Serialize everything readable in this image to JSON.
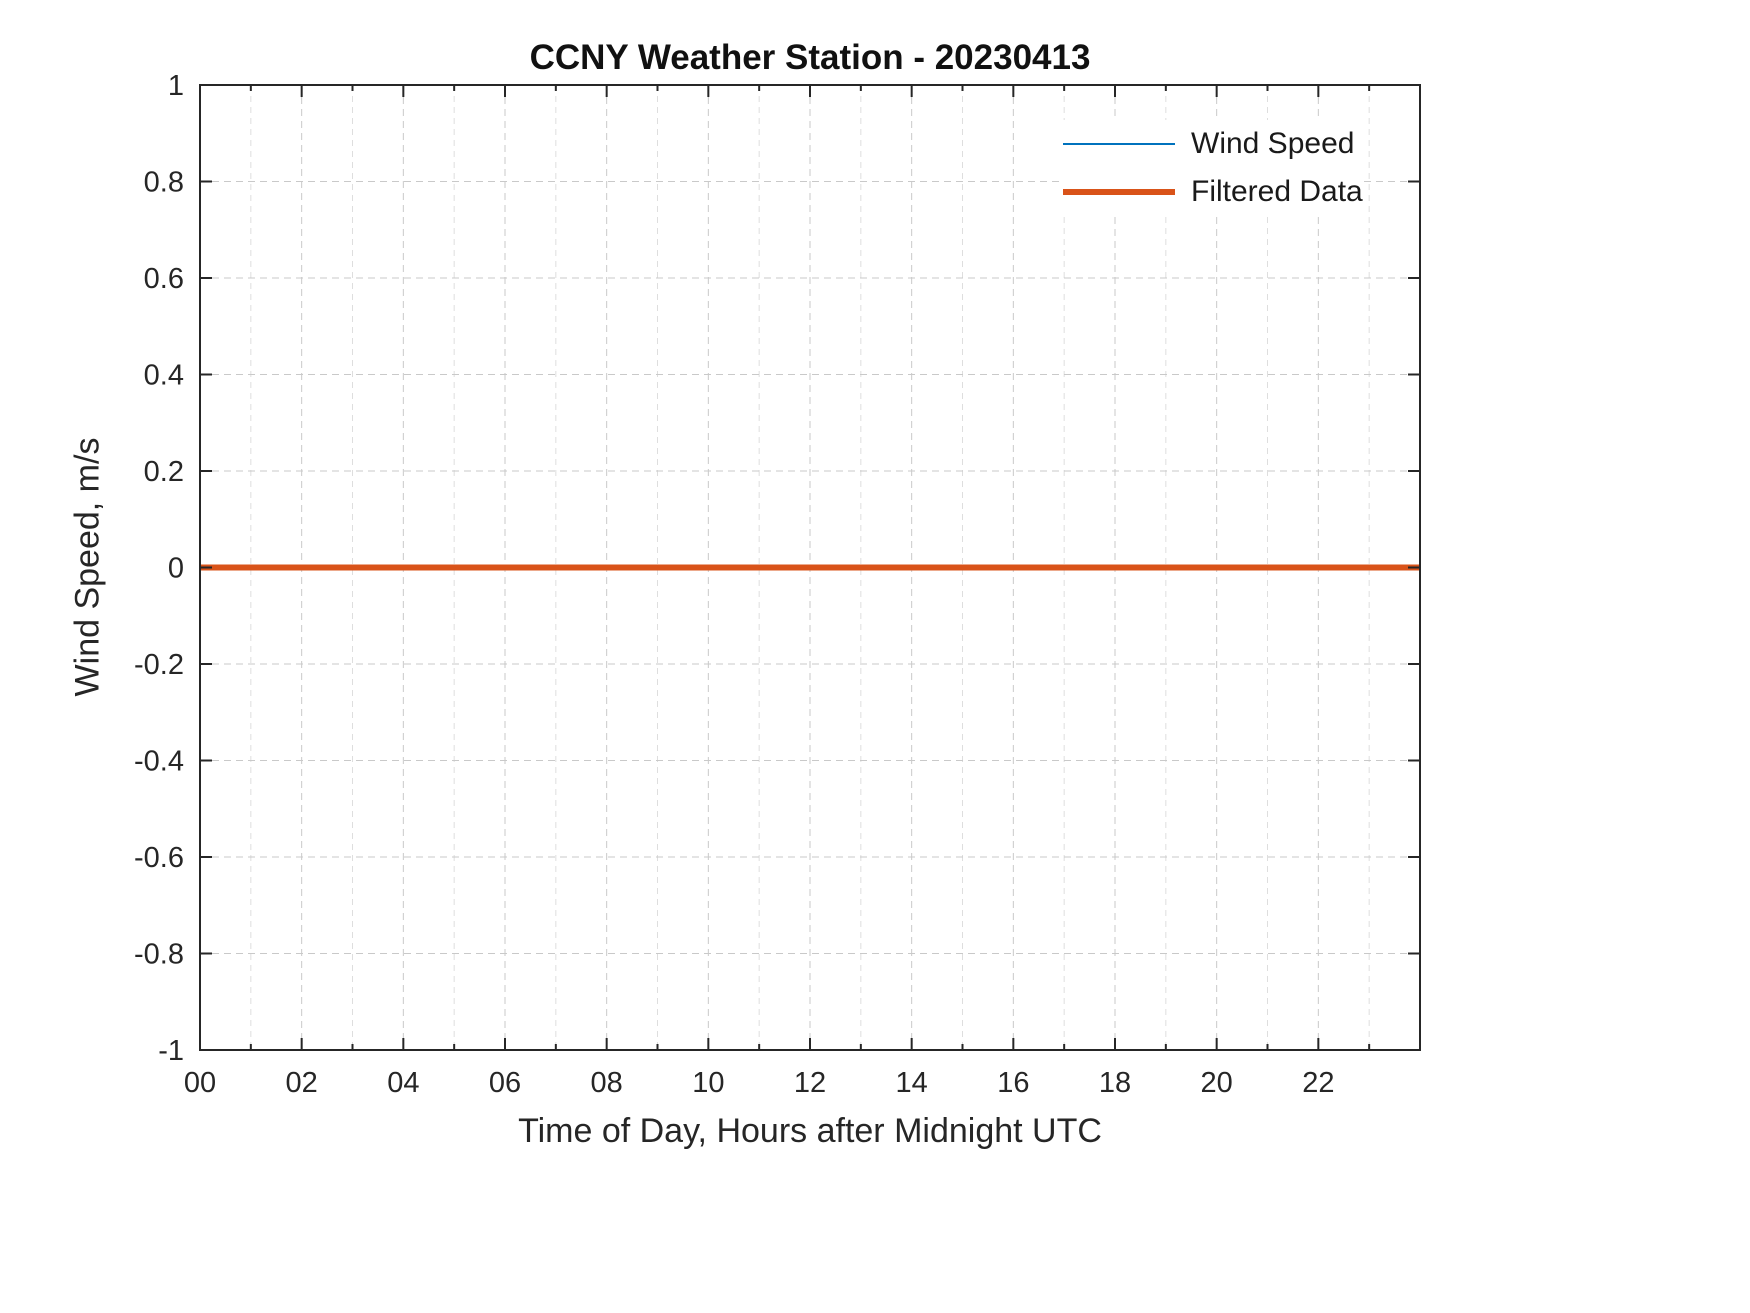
{
  "figure": {
    "background": "#ffffff"
  },
  "chart_data": {
    "type": "line",
    "title": "CCNY Weather Station - 20230413",
    "xlabel": "Time of Day, Hours after Midnight UTC",
    "ylabel": "Wind Speed, m/s",
    "xlim": [
      0,
      24
    ],
    "ylim": [
      -1,
      1
    ],
    "x_ticks": [
      0,
      2,
      4,
      6,
      8,
      10,
      12,
      14,
      16,
      18,
      20,
      22
    ],
    "x_tick_labels": [
      "00",
      "02",
      "04",
      "06",
      "08",
      "10",
      "12",
      "14",
      "16",
      "18",
      "20",
      "22"
    ],
    "x_minor_step": 1,
    "y_ticks": [
      -1,
      -0.8,
      -0.6,
      -0.4,
      -0.2,
      0,
      0.2,
      0.4,
      0.6,
      0.8,
      1
    ],
    "y_tick_labels": [
      "-1",
      "-0.8",
      "-0.6",
      "-0.4",
      "-0.2",
      "0",
      "0.2",
      "0.4",
      "0.6",
      "0.8",
      "1"
    ],
    "grid": "on",
    "grid_style": "dashed",
    "axis_color": "#262626",
    "grid_color": "#c9c9c9",
    "minor_grid_color": "#dedede",
    "legend": {
      "position": "top-right"
    },
    "series": [
      {
        "name": "Wind Speed",
        "color": "#0072BD",
        "line_width": 2,
        "x": [
          0,
          24
        ],
        "values": [
          0,
          0
        ]
      },
      {
        "name": "Filtered Data",
        "color": "#D95319",
        "line_width": 6,
        "x": [
          0,
          24
        ],
        "values": [
          0,
          0
        ]
      }
    ]
  }
}
